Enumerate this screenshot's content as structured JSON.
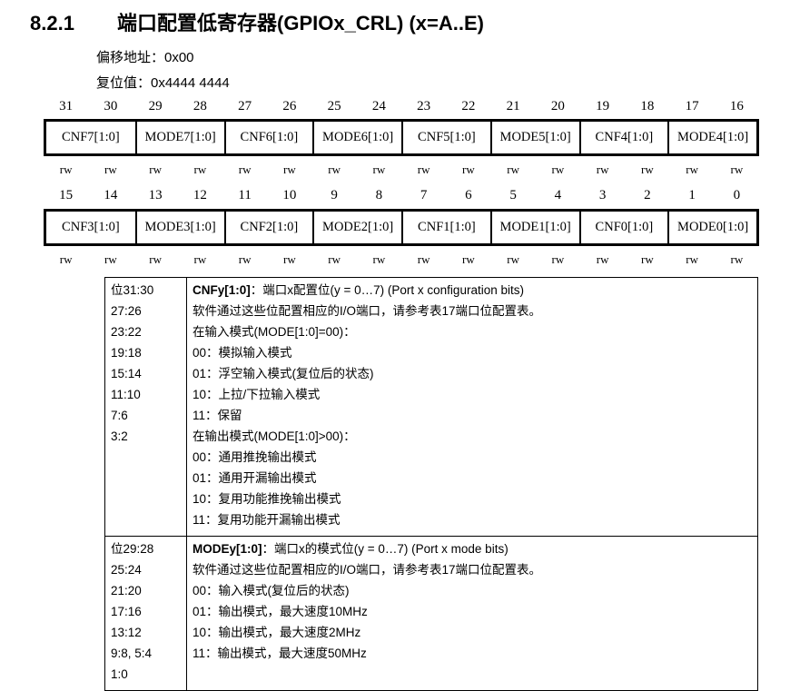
{
  "header": {
    "section": "8.2.1",
    "title": "端口配置低寄存器(GPIOx_CRL) (x=A..E)"
  },
  "meta": {
    "offset": "偏移地址：0x00",
    "reset": "复位值：0x4444 4444"
  },
  "register": {
    "high": {
      "bits": [
        "31",
        "30",
        "29",
        "28",
        "27",
        "26",
        "25",
        "24",
        "23",
        "22",
        "21",
        "20",
        "19",
        "18",
        "17",
        "16"
      ],
      "fields": [
        "CNF7[1:0]",
        "MODE7[1:0]",
        "CNF6[1:0]",
        "MODE6[1:0]",
        "CNF5[1:0]",
        "MODE5[1:0]",
        "CNF4[1:0]",
        "MODE4[1:0]"
      ]
    },
    "low": {
      "bits": [
        "15",
        "14",
        "13",
        "12",
        "11",
        "10",
        "9",
        "8",
        "7",
        "6",
        "5",
        "4",
        "3",
        "2",
        "1",
        "0"
      ],
      "fields": [
        "CNF3[1:0]",
        "MODE3[1:0]",
        "CNF2[1:0]",
        "MODE2[1:0]",
        "CNF1[1:0]",
        "MODE1[1:0]",
        "CNF0[1:0]",
        "MODE0[1:0]"
      ]
    },
    "access": "rw"
  },
  "description": [
    {
      "bits": [
        "位31:30",
        "27:26",
        "23:22",
        "19:18",
        "15:14",
        "11:10",
        "7:6",
        "3:2"
      ],
      "name": "CNFy[1:0]",
      "summary": "：端口x配置位(y = 0…7) (Port x configuration bits)",
      "lines": [
        "软件通过这些位配置相应的I/O端口，请参考表17端口位配置表。",
        "在输入模式(MODE[1:0]=00)：",
        "00：模拟输入模式",
        "01：浮空输入模式(复位后的状态)",
        "10：上拉/下拉输入模式",
        "11：保留",
        "在输出模式(MODE[1:0]>00)：",
        "00：通用推挽输出模式",
        "01：通用开漏输出模式",
        "10：复用功能推挽输出模式",
        "11：复用功能开漏输出模式"
      ]
    },
    {
      "bits": [
        "位29:28",
        "25:24",
        "21:20",
        "17:16",
        "13:12",
        "9:8, 5:4",
        "1:0"
      ],
      "name": "MODEy[1:0]",
      "summary": "：端口x的模式位(y = 0…7) (Port x mode bits)",
      "lines": [
        "软件通过这些位配置相应的I/O端口，请参考表17端口位配置表。",
        "00：输入模式(复位后的状态)",
        "01：输出模式，最大速度10MHz",
        "10：输出模式，最大速度2MHz",
        "11：输出模式，最大速度50MHz"
      ]
    }
  ]
}
